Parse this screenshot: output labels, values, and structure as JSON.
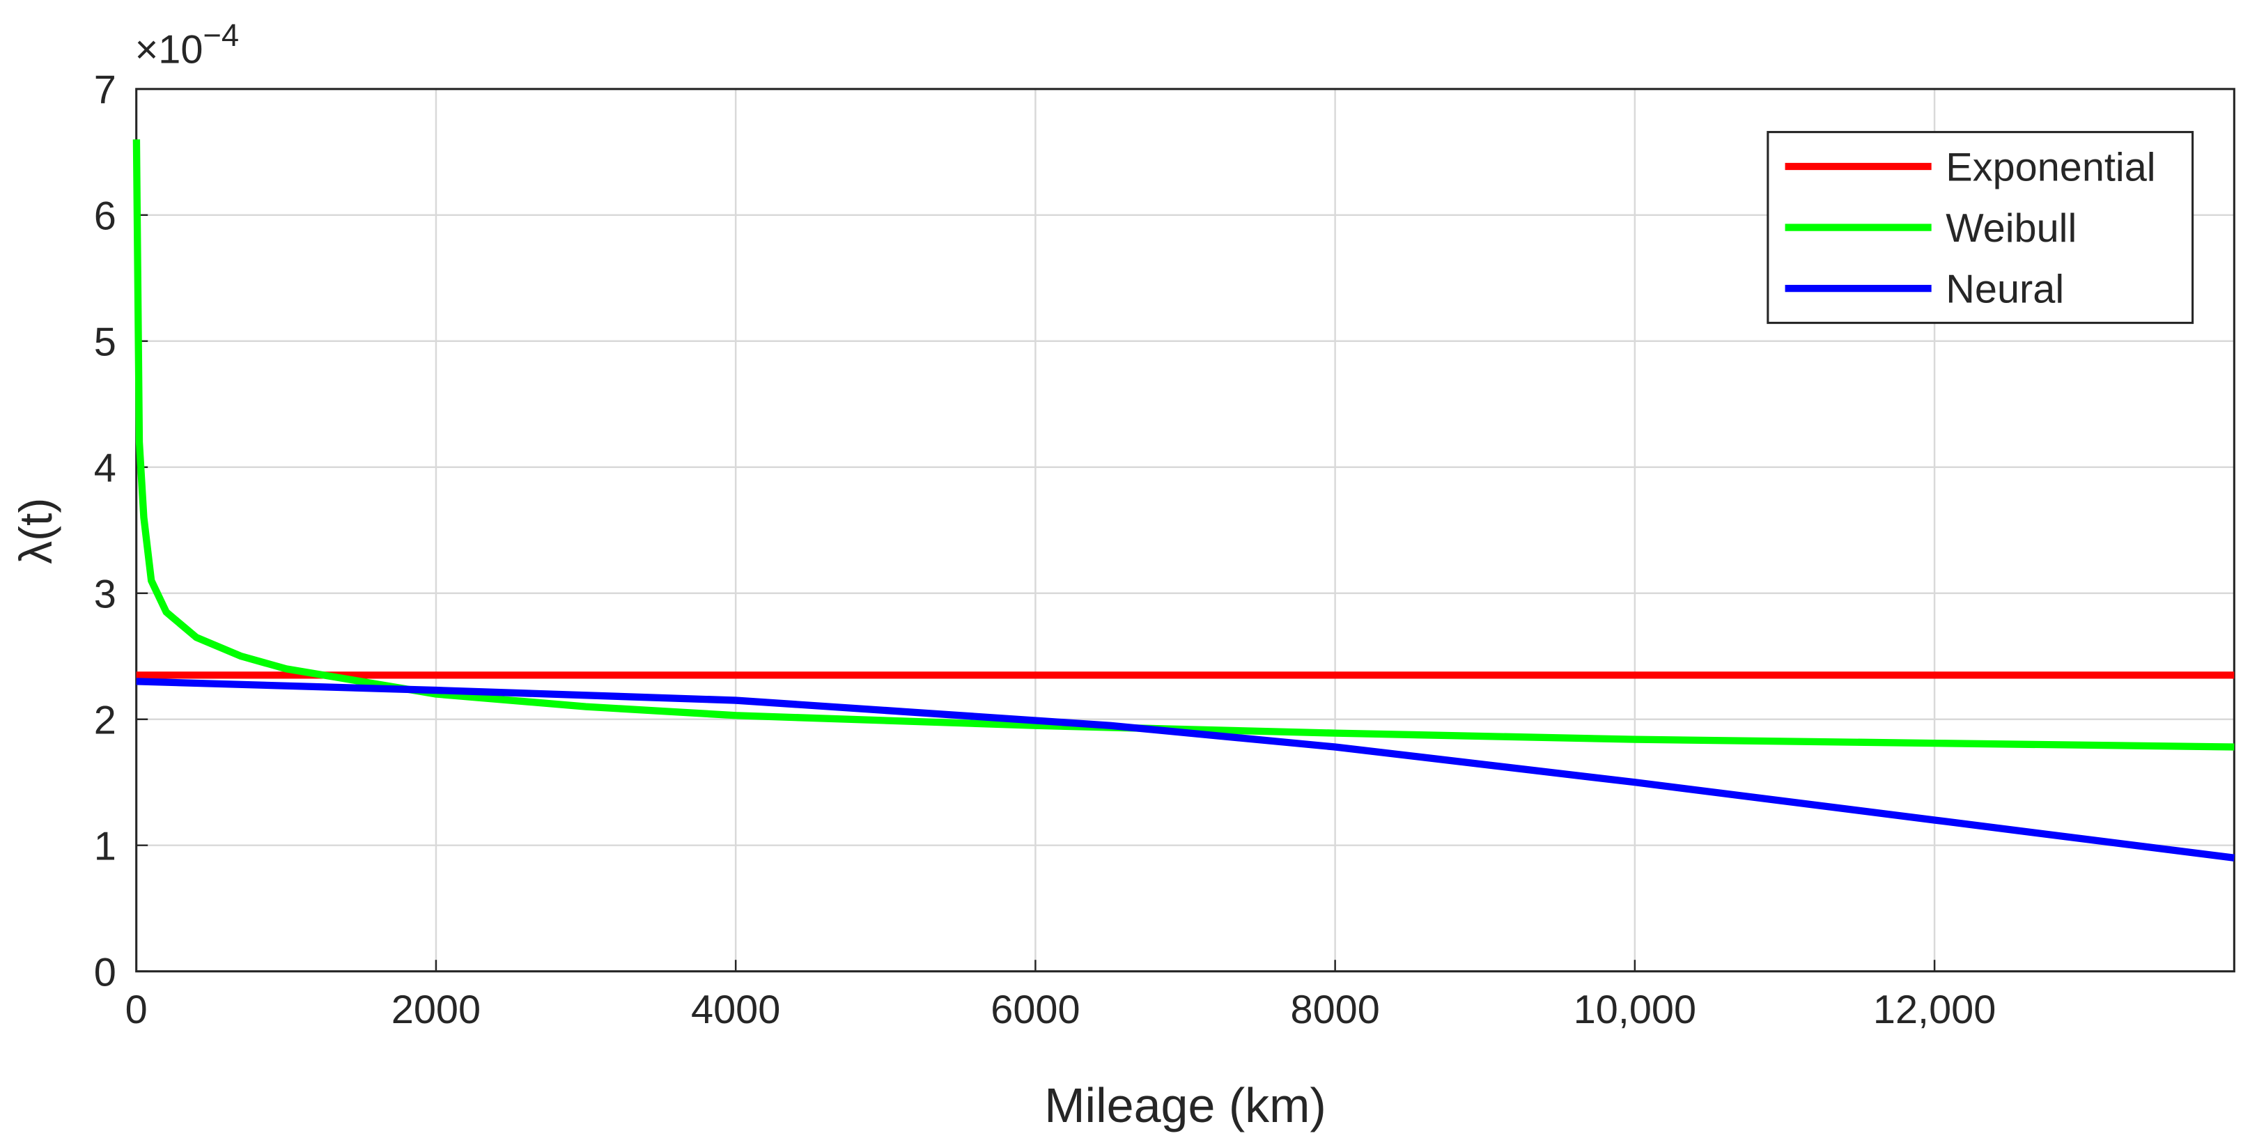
{
  "chart_data": {
    "type": "line",
    "y_label": "λ(t)",
    "x_label": "Mileage (km)",
    "y_multiplier": {
      "base": "×10",
      "exponent": "−4"
    },
    "xlim": [
      0,
      14000
    ],
    "ylim": [
      0,
      7
    ],
    "xticks": [
      0,
      2000,
      4000,
      6000,
      8000,
      {
        "value": 10000,
        "label": "10,000"
      },
      {
        "value": 12000,
        "label": "12,000"
      }
    ],
    "yticks": [
      0,
      1,
      2,
      3,
      4,
      5,
      6,
      7
    ],
    "grid": true,
    "legend": "top-right",
    "series": [
      {
        "name": "Exponential",
        "color": "#ff0000",
        "x": [
          0,
          14000
        ],
        "values": [
          2.35,
          2.35
        ]
      },
      {
        "name": "Weibull",
        "color": "#00ff00",
        "x": [
          1,
          20,
          50,
          100,
          200,
          400,
          700,
          1000,
          1500,
          2000,
          3000,
          4000,
          6000,
          8000,
          10000,
          12000,
          14000
        ],
        "values": [
          6.6,
          4.2,
          3.6,
          3.1,
          2.85,
          2.65,
          2.5,
          2.4,
          2.3,
          2.2,
          2.1,
          2.03,
          1.95,
          1.89,
          1.84,
          1.81,
          1.78
        ]
      },
      {
        "name": "Neural",
        "color": "#0000ff",
        "x": [
          0,
          2000,
          4000,
          5500,
          6500,
          8000,
          10000,
          12000,
          14000
        ],
        "values": [
          2.3,
          2.23,
          2.15,
          2.03,
          1.95,
          1.78,
          1.5,
          1.2,
          0.9
        ]
      }
    ]
  }
}
